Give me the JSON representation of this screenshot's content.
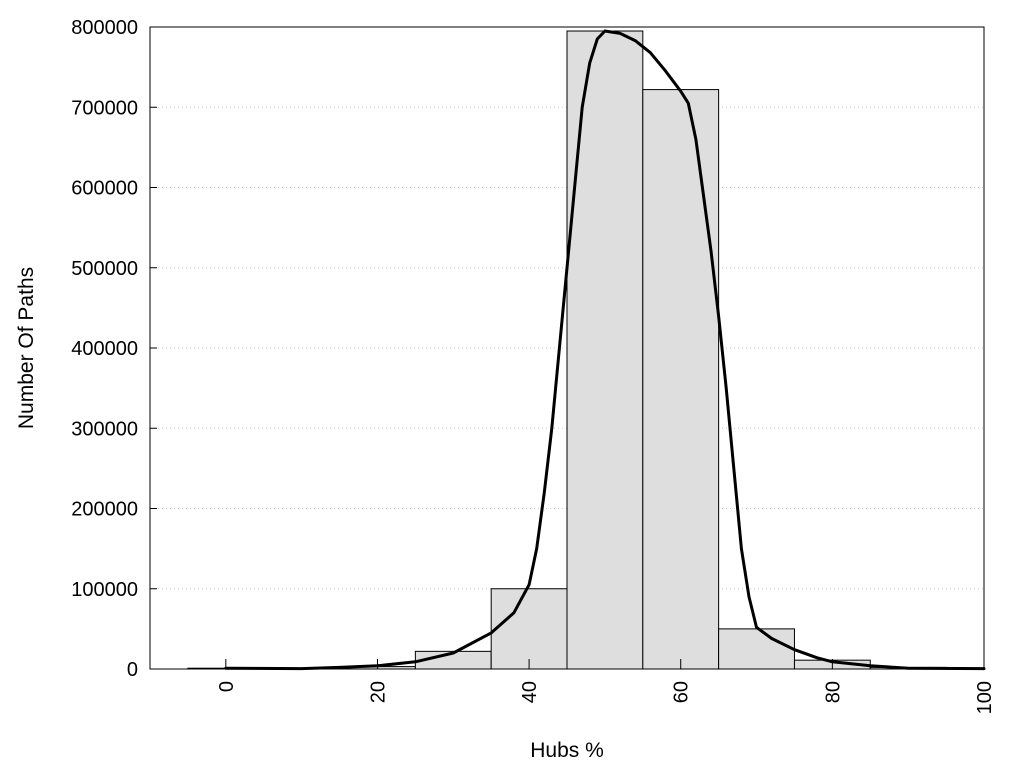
{
  "chart_data": {
    "type": "bar",
    "title": "",
    "xlabel": "Hubs %",
    "ylabel": "Number Of Paths",
    "xlim": [
      -10,
      100
    ],
    "ylim": [
      0,
      800000
    ],
    "x_ticks": [
      0,
      20,
      40,
      60,
      80,
      100
    ],
    "y_ticks": [
      0,
      100000,
      200000,
      300000,
      400000,
      500000,
      600000,
      700000,
      800000
    ],
    "grid": "horizontal dotted",
    "legend": "none",
    "bin_width": 10,
    "bins": [
      {
        "center": 0,
        "value": 1000
      },
      {
        "center": 10,
        "value": 1000
      },
      {
        "center": 20,
        "value": 3000
      },
      {
        "center": 30,
        "value": 22000
      },
      {
        "center": 40,
        "value": 100000
      },
      {
        "center": 50,
        "value": 795000
      },
      {
        "center": 60,
        "value": 722000
      },
      {
        "center": 70,
        "value": 50000
      },
      {
        "center": 80,
        "value": 11000
      },
      {
        "center": 90,
        "value": 2000
      }
    ],
    "curve": {
      "points": [
        [
          0,
          1000
        ],
        [
          10,
          500
        ],
        [
          15,
          2000
        ],
        [
          20,
          4000
        ],
        [
          25,
          9000
        ],
        [
          30,
          20000
        ],
        [
          35,
          45000
        ],
        [
          38,
          70000
        ],
        [
          40,
          105000
        ],
        [
          41,
          150000
        ],
        [
          42,
          220000
        ],
        [
          43,
          300000
        ],
        [
          44,
          400000
        ],
        [
          45,
          500000
        ],
        [
          46,
          600000
        ],
        [
          47,
          700000
        ],
        [
          48,
          755000
        ],
        [
          49,
          785000
        ],
        [
          50,
          795000
        ],
        [
          52,
          792000
        ],
        [
          54,
          783000
        ],
        [
          56,
          768000
        ],
        [
          58,
          745000
        ],
        [
          60,
          720000
        ],
        [
          61,
          705000
        ],
        [
          62,
          660000
        ],
        [
          63,
          590000
        ],
        [
          64,
          520000
        ],
        [
          65,
          440000
        ],
        [
          66,
          350000
        ],
        [
          67,
          250000
        ],
        [
          68,
          150000
        ],
        [
          69,
          90000
        ],
        [
          70,
          52000
        ],
        [
          72,
          38000
        ],
        [
          75,
          24000
        ],
        [
          78,
          14000
        ],
        [
          80,
          9000
        ],
        [
          85,
          4000
        ],
        [
          90,
          1000
        ],
        [
          100,
          500
        ]
      ],
      "color": "#000000"
    },
    "colors": {
      "bar_fill": "#dedede",
      "bar_stroke": "#000000",
      "grid": "#c8c8c8",
      "frame": "#000000"
    }
  }
}
